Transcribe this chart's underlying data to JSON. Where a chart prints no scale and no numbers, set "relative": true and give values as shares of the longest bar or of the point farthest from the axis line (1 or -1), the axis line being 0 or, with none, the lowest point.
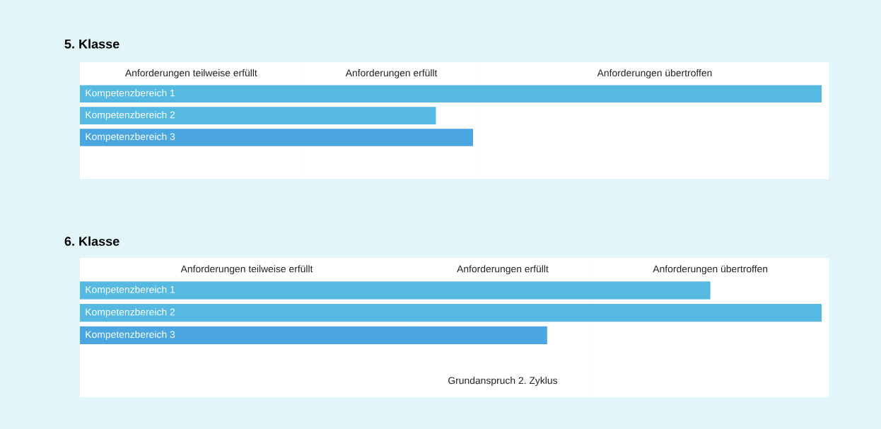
{
  "chart_data": [
    {
      "type": "bar",
      "title": "5. Klasse",
      "orientation": "horizontal",
      "relative": true,
      "tick_labels": false,
      "legend": false,
      "categories": [
        "Kompetenzbereich 1",
        "Kompetenzbereich 2",
        "Kompetenzbereich 3"
      ],
      "values": [
        1,
        0.48,
        0.53
      ],
      "colors": [
        "#55b9e2",
        "#55b9e2",
        "#4aa6e0"
      ],
      "bands": [
        {
          "axis": "x",
          "from": 0,
          "to": 0.3,
          "label": "Anforderungen teilweise erfüllt",
          "color": "#ffffff"
        },
        {
          "axis": "x",
          "from": 0.3,
          "to": 0.54,
          "label": "Anforderungen erfüllt",
          "color": "#ffffff"
        },
        {
          "axis": "x",
          "from": 0.54,
          "to": 1.01,
          "label": "Anforderungen übertroffen",
          "color": "#ffffff"
        }
      ]
    },
    {
      "type": "bar",
      "title": "6. Klasse",
      "orientation": "horizontal",
      "relative": true,
      "tick_labels": false,
      "legend": false,
      "categories": [
        "Kompetenzbereich 1",
        "Kompetenzbereich 2",
        "Kompetenzbereich 3"
      ],
      "values": [
        0.85,
        1,
        0.63
      ],
      "colors": [
        "#55b9e2",
        "#55b9e2",
        "#4aa6e0"
      ],
      "bands": [
        {
          "axis": "x",
          "from": 0,
          "to": 0.45,
          "label": "Anforderungen teilweise erfüllt",
          "color": "#ffffff"
        },
        {
          "axis": "x",
          "from": 0.45,
          "to": 0.69,
          "label": "Anforderungen erfüllt",
          "color": "#ffffff"
        },
        {
          "axis": "x",
          "from": 0.69,
          "to": 1.01,
          "label": "Anforderungen übertroffen",
          "color": "#ffffff"
        }
      ],
      "annotations": [
        "Grundanspruch 2. Zyklus"
      ]
    }
  ]
}
